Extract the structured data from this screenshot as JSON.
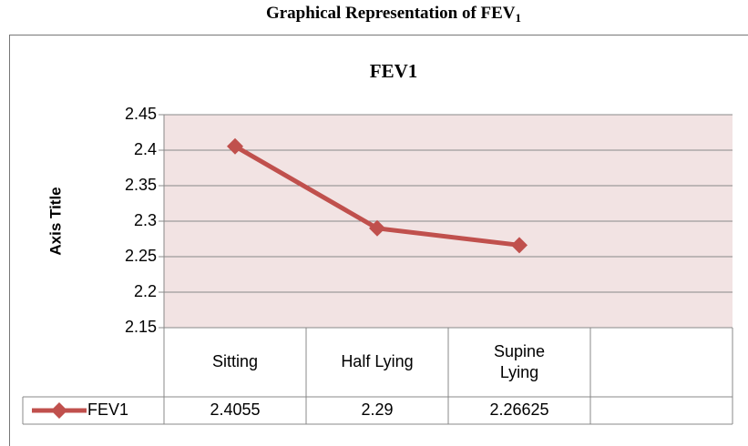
{
  "caption": "Graphical Representation of FEV",
  "caption_subscript": "1",
  "chart_data": {
    "type": "line",
    "title": "FEV1",
    "y_axis_title": "Axis Title",
    "categories": [
      "Sitting",
      "Half Lying",
      "Supine Lying",
      null
    ],
    "series": [
      {
        "name": "FEV1",
        "color": "#c0504d",
        "values": [
          2.4055,
          2.29,
          2.26625,
          null
        ]
      }
    ],
    "ylim": [
      2.15,
      2.45
    ],
    "yticks": [
      2.15,
      2.2,
      2.25,
      2.3,
      2.35,
      2.4,
      2.45
    ],
    "grid": true,
    "plot_background": "#f2e3e3",
    "data_table": true
  }
}
